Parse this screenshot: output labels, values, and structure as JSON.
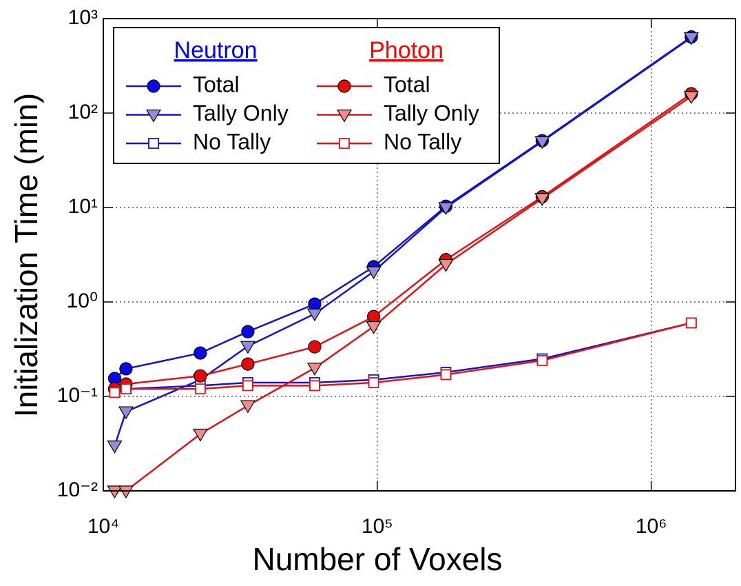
{
  "chart_data": {
    "type": "line",
    "xlabel": "Number of Voxels",
    "ylabel": "Initialization Time  (min)",
    "x": [
      11000,
      12100,
      22600,
      33700,
      59100,
      97000,
      178000,
      400000,
      1400000
    ],
    "xscale": "log",
    "yscale": "log",
    "xlim": [
      10000,
      2030000
    ],
    "ylim": [
      0.01,
      1000
    ],
    "xticks": [
      {
        "value": 10000,
        "label": "10⁴"
      },
      {
        "value": 100000,
        "label": "10⁵"
      },
      {
        "value": 1000000,
        "label": "10⁶"
      }
    ],
    "yticks": [
      {
        "value": 0.01,
        "label": "10⁻²"
      },
      {
        "value": 0.1,
        "label": "10⁻¹"
      },
      {
        "value": 1,
        "label": "10⁰"
      },
      {
        "value": 10,
        "label": "10¹"
      },
      {
        "value": 100,
        "label": "10²"
      },
      {
        "value": 1000,
        "label": "10³"
      }
    ],
    "grid": true,
    "legend_position": "upper left",
    "legend_groups": [
      {
        "name": "Neutron",
        "color": "#0000ff"
      },
      {
        "name": "Photon",
        "color": "#ff0000"
      }
    ],
    "series": [
      {
        "name": "Total",
        "group": "Neutron",
        "color": "#1414c8",
        "marker": "circle",
        "marker_fill": "#0a0ae6",
        "values": [
          0.155,
          0.196,
          0.288,
          0.485,
          0.95,
          2.36,
          10.3,
          51,
          640
        ]
      },
      {
        "name": "Tally Only",
        "group": "Neutron",
        "color": "#1414c8",
        "marker": "triangle-down",
        "marker_fill": "#8e8ed8",
        "values": [
          0.03,
          0.069,
          0.15,
          0.34,
          0.75,
          2.1,
          10,
          50,
          630
        ]
      },
      {
        "name": "No Tally",
        "group": "Neutron",
        "color": "#1414c8",
        "marker": "square-open",
        "marker_fill": "#ffffff",
        "values": [
          0.115,
          0.12,
          0.13,
          0.14,
          0.14,
          0.15,
          0.18,
          0.25,
          0.6
        ]
      },
      {
        "name": "Total",
        "group": "Photon",
        "color": "#e01414",
        "marker": "circle",
        "marker_fill": "#e60a0a",
        "values": [
          0.12,
          0.135,
          0.165,
          0.22,
          0.335,
          0.7,
          2.8,
          13,
          160
        ]
      },
      {
        "name": "Tally Only",
        "group": "Photon",
        "color": "#e01414",
        "marker": "triangle-down",
        "marker_fill": "#f08c8c",
        "values": [
          0.01,
          0.01,
          0.04,
          0.08,
          0.2,
          0.55,
          2.5,
          12.5,
          150
        ]
      },
      {
        "name": "No Tally",
        "group": "Photon",
        "color": "#e01414",
        "marker": "square-open",
        "marker_fill": "#ffffff",
        "values": [
          0.11,
          0.12,
          0.12,
          0.13,
          0.13,
          0.14,
          0.17,
          0.24,
          0.6
        ]
      }
    ]
  }
}
